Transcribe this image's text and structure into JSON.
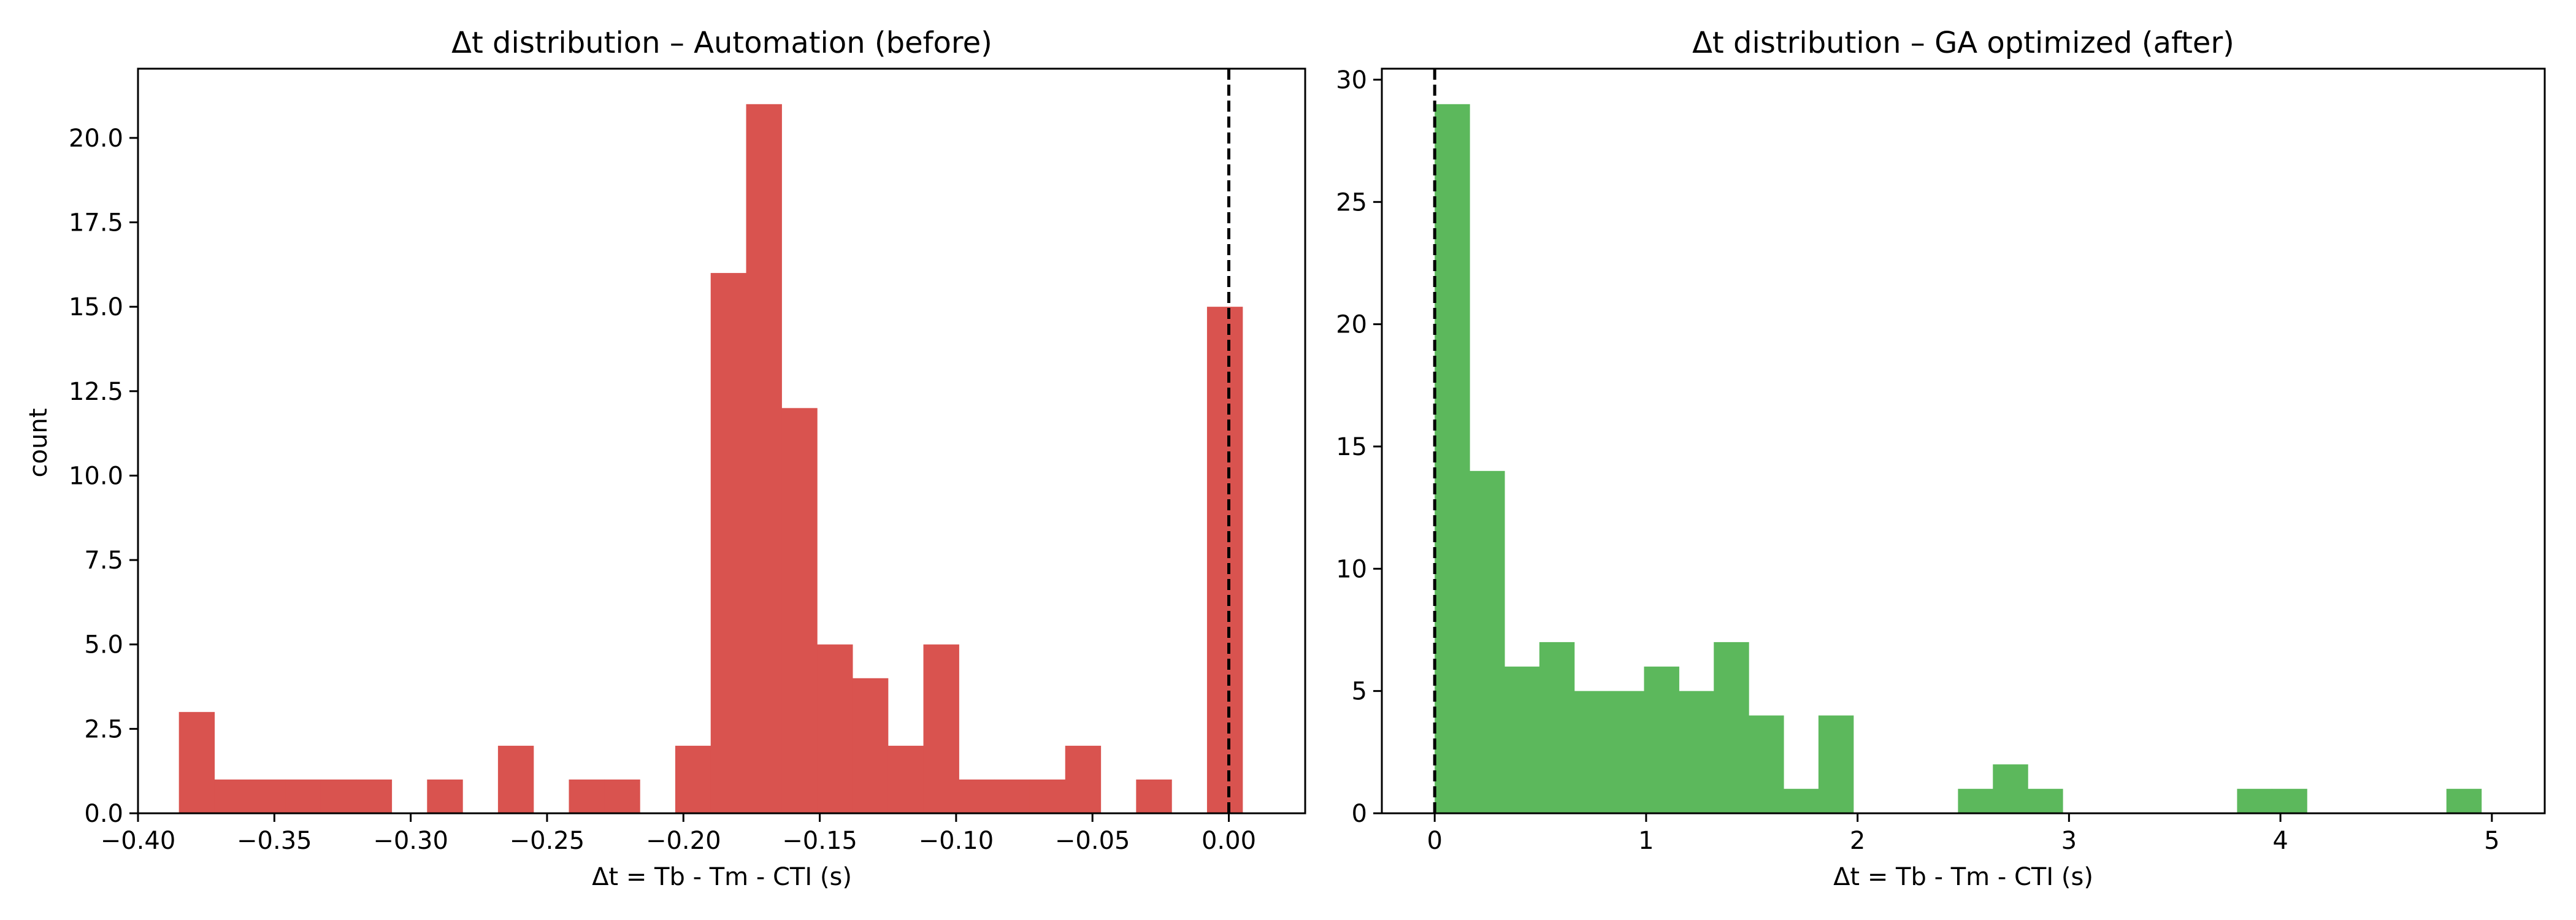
{
  "chart_data": [
    {
      "type": "bar",
      "title": "Δt distribution – Automation (before)",
      "xlabel": "Δt = Tb - Tm - CTI (s)",
      "ylabel": "count",
      "xlim": [
        -0.4,
        0.028
      ],
      "ylim": [
        0,
        22.05
      ],
      "xticks": [
        -0.4,
        -0.35,
        -0.3,
        -0.25,
        -0.2,
        -0.15,
        -0.1,
        -0.05,
        0.0
      ],
      "xtick_labels": [
        "−0.40",
        "−0.35",
        "−0.30",
        "−0.25",
        "−0.20",
        "−0.15",
        "−0.10",
        "−0.05",
        "0.00"
      ],
      "yticks": [
        0,
        2.5,
        5,
        7.5,
        10,
        12.5,
        15,
        17.5,
        20
      ],
      "ytick_labels": [
        "0.0",
        "2.5",
        "5.0",
        "7.5",
        "10.0",
        "12.5",
        "15.0",
        "17.5",
        "20.0"
      ],
      "bin_start": -0.385,
      "bin_width": 0.013,
      "values": [
        3,
        1,
        1,
        1,
        1,
        1,
        0,
        1,
        0,
        2,
        0,
        1,
        1,
        0,
        2,
        16,
        21,
        12,
        5,
        4,
        2,
        5,
        1,
        1,
        1,
        2,
        0,
        1,
        0,
        15
      ],
      "vline": 0.0,
      "color": "#d9534f",
      "grid": false
    },
    {
      "type": "bar",
      "title": "Δt distribution – GA optimized (after)",
      "xlabel": "Δt = Tb - Tm - CTI (s)",
      "ylabel": "",
      "xlim": [
        -0.25,
        5.25
      ],
      "ylim": [
        0,
        30.45
      ],
      "xticks": [
        0,
        1,
        2,
        3,
        4,
        5
      ],
      "xtick_labels": [
        "0",
        "1",
        "2",
        "3",
        "4",
        "5"
      ],
      "yticks": [
        0,
        5,
        10,
        15,
        20,
        25,
        30
      ],
      "ytick_labels": [
        "0",
        "5",
        "10",
        "15",
        "20",
        "25",
        "30"
      ],
      "bin_start": 0.0,
      "bin_width": 0.165,
      "values": [
        29,
        14,
        6,
        7,
        5,
        5,
        6,
        5,
        7,
        4,
        1,
        4,
        0,
        0,
        0,
        1,
        2,
        1,
        0,
        0,
        0,
        0,
        0,
        1,
        1,
        0,
        0,
        0,
        0,
        1
      ],
      "vline": 0.0,
      "color": "#5cb85c",
      "grid": false
    }
  ]
}
